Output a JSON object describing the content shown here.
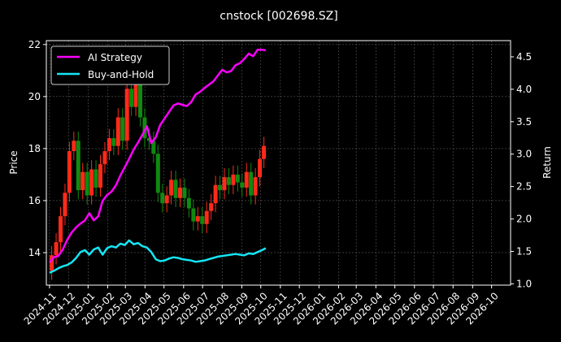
{
  "chart_data": {
    "type": "line",
    "title": "cnstock [002698.SZ]",
    "xlabel": "",
    "ylabel_left": "Price",
    "ylabel_right": "Return",
    "x_ticks": [
      "2024-11",
      "2024-12",
      "2025-01",
      "2025-02",
      "2025-03",
      "2025-04",
      "2025-05",
      "2025-06",
      "2025-07",
      "2025-08",
      "2025-09",
      "2025-10",
      "2025-11",
      "2025-12",
      "2026-01",
      "2026-02",
      "2026-03",
      "2026-04",
      "2026-05",
      "2026-06",
      "2026-07",
      "2026-08",
      "2026-09",
      "2026-10"
    ],
    "y_left_ticks": [
      14,
      16,
      18,
      20,
      22
    ],
    "y_right_ticks": [
      1.0,
      1.5,
      2.0,
      2.5,
      3.0,
      3.5,
      4.0,
      4.5
    ],
    "y_left_range": [
      12.75,
      22.15
    ],
    "y_right_range": [
      0.98,
      4.75
    ],
    "x_range": [
      "2024-10-27",
      "2026-10-31"
    ],
    "grid": true,
    "legend_position": "top-left",
    "colors": {
      "up": "#ff2a1a",
      "down": "#108a10",
      "strategy": "#ff00ff",
      "buyhold": "#14e6f5"
    },
    "price_series": [
      [
        "2024-11-01",
        13.3
      ],
      [
        "2024-11-08",
        13.9
      ],
      [
        "2024-11-15",
        14.4
      ],
      [
        "2024-11-22",
        15.4
      ],
      [
        "2024-11-29",
        16.3
      ],
      [
        "2024-12-06",
        17.9
      ],
      [
        "2024-12-13",
        18.3
      ],
      [
        "2024-12-20",
        16.4
      ],
      [
        "2024-12-27",
        17.1
      ],
      [
        "2025-01-03",
        16.2
      ],
      [
        "2025-01-10",
        17.2
      ],
      [
        "2025-01-17",
        16.5
      ],
      [
        "2025-01-24",
        17.4
      ],
      [
        "2025-01-31",
        17.9
      ],
      [
        "2025-02-07",
        18.4
      ],
      [
        "2025-02-14",
        18.1
      ],
      [
        "2025-02-21",
        19.2
      ],
      [
        "2025-02-28",
        18.3
      ],
      [
        "2025-03-07",
        20.3
      ],
      [
        "2025-03-14",
        19.6
      ],
      [
        "2025-03-21",
        20.7
      ],
      [
        "2025-03-28",
        19.2
      ],
      [
        "2025-04-04",
        18.4
      ],
      [
        "2025-04-11",
        18.3
      ],
      [
        "2025-04-18",
        17.8
      ],
      [
        "2025-04-25",
        16.3
      ],
      [
        "2025-05-02",
        15.9
      ],
      [
        "2025-05-09",
        16.2
      ],
      [
        "2025-05-16",
        16.8
      ],
      [
        "2025-05-23",
        16.1
      ],
      [
        "2025-05-30",
        16.5
      ],
      [
        "2025-06-06",
        16.1
      ],
      [
        "2025-06-13",
        15.7
      ],
      [
        "2025-06-20",
        15.2
      ],
      [
        "2025-06-27",
        15.4
      ],
      [
        "2025-07-04",
        15.1
      ],
      [
        "2025-07-11",
        15.6
      ],
      [
        "2025-07-18",
        15.9
      ],
      [
        "2025-07-25",
        16.6
      ],
      [
        "2025-08-01",
        16.4
      ],
      [
        "2025-08-08",
        16.9
      ],
      [
        "2025-08-15",
        16.6
      ],
      [
        "2025-08-22",
        17.0
      ],
      [
        "2025-08-29",
        16.7
      ],
      [
        "2025-09-05",
        16.5
      ],
      [
        "2025-09-12",
        17.1
      ],
      [
        "2025-09-19",
        16.2
      ],
      [
        "2025-09-26",
        16.9
      ],
      [
        "2025-10-03",
        17.6
      ],
      [
        "2025-10-09",
        18.1
      ]
    ],
    "series": [
      {
        "name": "AI Strategy",
        "points": [
          [
            "2024-11-01",
            1.33
          ],
          [
            "2024-11-08",
            1.41
          ],
          [
            "2024-11-15",
            1.43
          ],
          [
            "2024-11-22",
            1.53
          ],
          [
            "2024-11-29",
            1.68
          ],
          [
            "2024-12-06",
            1.79
          ],
          [
            "2024-12-13",
            1.87
          ],
          [
            "2024-12-20",
            1.93
          ],
          [
            "2024-12-27",
            1.98
          ],
          [
            "2025-01-03",
            2.09
          ],
          [
            "2025-01-10",
            1.98
          ],
          [
            "2025-01-17",
            2.04
          ],
          [
            "2025-01-24",
            2.28
          ],
          [
            "2025-01-31",
            2.37
          ],
          [
            "2025-02-07",
            2.42
          ],
          [
            "2025-02-14",
            2.52
          ],
          [
            "2025-02-21",
            2.67
          ],
          [
            "2025-02-28",
            2.8
          ],
          [
            "2025-03-07",
            2.93
          ],
          [
            "2025-03-14",
            3.07
          ],
          [
            "2025-03-21",
            3.18
          ],
          [
            "2025-03-28",
            3.3
          ],
          [
            "2025-04-04",
            3.43
          ],
          [
            "2025-04-11",
            3.17
          ],
          [
            "2025-04-18",
            3.26
          ],
          [
            "2025-04-25",
            3.45
          ],
          [
            "2025-05-02",
            3.55
          ],
          [
            "2025-05-09",
            3.65
          ],
          [
            "2025-05-16",
            3.75
          ],
          [
            "2025-05-23",
            3.78
          ],
          [
            "2025-05-30",
            3.76
          ],
          [
            "2025-06-06",
            3.74
          ],
          [
            "2025-06-13",
            3.8
          ],
          [
            "2025-06-20",
            3.92
          ],
          [
            "2025-06-27",
            3.96
          ],
          [
            "2025-07-04",
            4.02
          ],
          [
            "2025-07-11",
            4.07
          ],
          [
            "2025-07-18",
            4.12
          ],
          [
            "2025-07-25",
            4.21
          ],
          [
            "2025-08-01",
            4.3
          ],
          [
            "2025-08-08",
            4.26
          ],
          [
            "2025-08-15",
            4.28
          ],
          [
            "2025-08-22",
            4.37
          ],
          [
            "2025-08-29",
            4.4
          ],
          [
            "2025-09-05",
            4.47
          ],
          [
            "2025-09-12",
            4.55
          ],
          [
            "2025-09-19",
            4.51
          ],
          [
            "2025-09-26",
            4.61
          ],
          [
            "2025-10-03",
            4.61
          ],
          [
            "2025-10-09",
            4.6
          ]
        ]
      },
      {
        "name": "Buy-and-Hold",
        "points": [
          [
            "2024-11-01",
            1.17
          ],
          [
            "2024-11-08",
            1.2
          ],
          [
            "2024-11-15",
            1.24
          ],
          [
            "2024-11-22",
            1.27
          ],
          [
            "2024-11-29",
            1.29
          ],
          [
            "2024-12-06",
            1.33
          ],
          [
            "2024-12-13",
            1.4
          ],
          [
            "2024-12-20",
            1.49
          ],
          [
            "2024-12-27",
            1.52
          ],
          [
            "2025-01-03",
            1.45
          ],
          [
            "2025-01-10",
            1.53
          ],
          [
            "2025-01-17",
            1.56
          ],
          [
            "2025-01-24",
            1.45
          ],
          [
            "2025-01-31",
            1.55
          ],
          [
            "2025-02-07",
            1.58
          ],
          [
            "2025-02-14",
            1.56
          ],
          [
            "2025-02-21",
            1.62
          ],
          [
            "2025-02-28",
            1.6
          ],
          [
            "2025-03-07",
            1.67
          ],
          [
            "2025-03-14",
            1.61
          ],
          [
            "2025-03-21",
            1.63
          ],
          [
            "2025-03-28",
            1.58
          ],
          [
            "2025-04-04",
            1.56
          ],
          [
            "2025-04-11",
            1.49
          ],
          [
            "2025-04-18",
            1.38
          ],
          [
            "2025-04-25",
            1.35
          ],
          [
            "2025-05-02",
            1.36
          ],
          [
            "2025-05-09",
            1.39
          ],
          [
            "2025-05-16",
            1.41
          ],
          [
            "2025-05-23",
            1.4
          ],
          [
            "2025-05-30",
            1.38
          ],
          [
            "2025-06-06",
            1.37
          ],
          [
            "2025-06-13",
            1.36
          ],
          [
            "2025-06-20",
            1.34
          ],
          [
            "2025-06-27",
            1.35
          ],
          [
            "2025-07-04",
            1.36
          ],
          [
            "2025-07-11",
            1.38
          ],
          [
            "2025-07-18",
            1.4
          ],
          [
            "2025-07-25",
            1.42
          ],
          [
            "2025-08-01",
            1.43
          ],
          [
            "2025-08-08",
            1.44
          ],
          [
            "2025-08-15",
            1.45
          ],
          [
            "2025-08-22",
            1.46
          ],
          [
            "2025-08-29",
            1.45
          ],
          [
            "2025-09-05",
            1.44
          ],
          [
            "2025-09-12",
            1.47
          ],
          [
            "2025-09-19",
            1.46
          ],
          [
            "2025-09-26",
            1.49
          ],
          [
            "2025-10-03",
            1.52
          ],
          [
            "2025-10-09",
            1.55
          ]
        ]
      }
    ]
  }
}
